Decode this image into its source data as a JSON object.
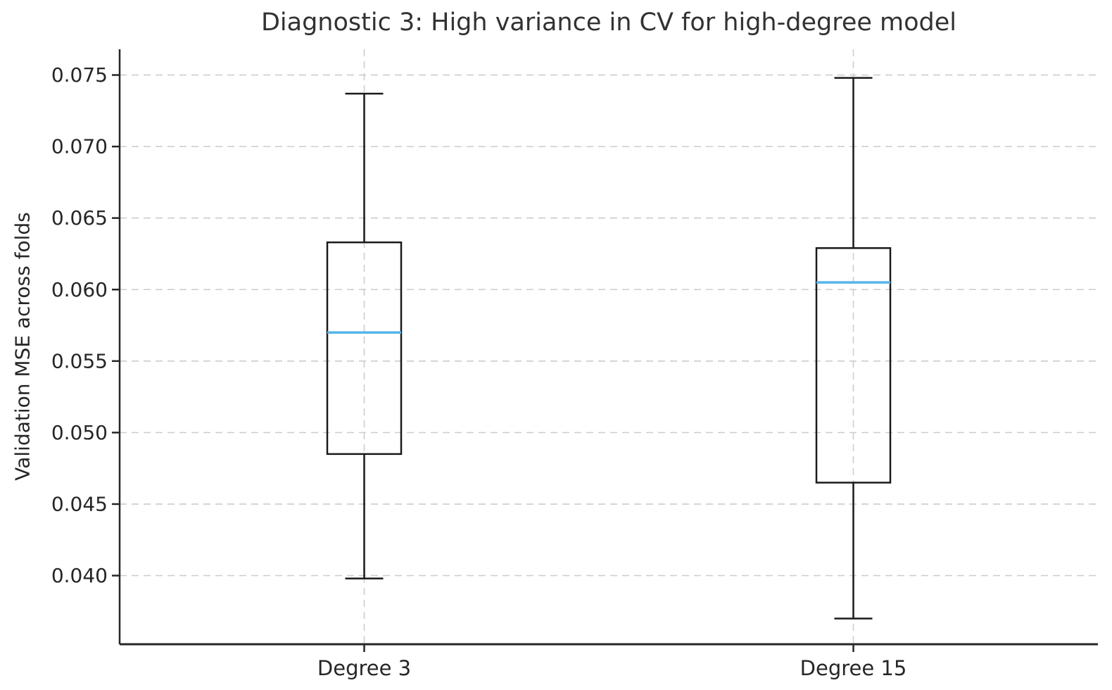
{
  "chart_data": {
    "type": "boxplot",
    "title": "Diagnostic 3: High variance in CV for high-degree model",
    "ylabel": "Validation MSE across folds",
    "xlabel": "",
    "categories": [
      "Degree 3",
      "Degree 15"
    ],
    "series": [
      {
        "name": "Degree 3",
        "whisker_low": 0.0398,
        "q1": 0.0485,
        "median": 0.057,
        "q3": 0.0633,
        "whisker_high": 0.0737
      },
      {
        "name": "Degree 15",
        "whisker_low": 0.037,
        "q1": 0.0465,
        "median": 0.0605,
        "q3": 0.0629,
        "whisker_high": 0.0748
      }
    ],
    "yticks": [
      0.075,
      0.07,
      0.065,
      0.06,
      0.055,
      0.05,
      0.045,
      0.04
    ],
    "ytick_labels": [
      "0.075",
      "0.070",
      "0.065",
      "0.060",
      "0.055",
      "0.050",
      "0.045",
      "0.040"
    ],
    "ylim": [
      0.0352,
      0.0768
    ],
    "grid": true,
    "legend": false,
    "colors": {
      "median": "#56B4E9",
      "box_edge": "#1a1a1a",
      "whisker": "#1a1a1a",
      "grid": "#cccccc",
      "spine": "#262626",
      "text": "#262626",
      "background": "#ffffff"
    }
  }
}
